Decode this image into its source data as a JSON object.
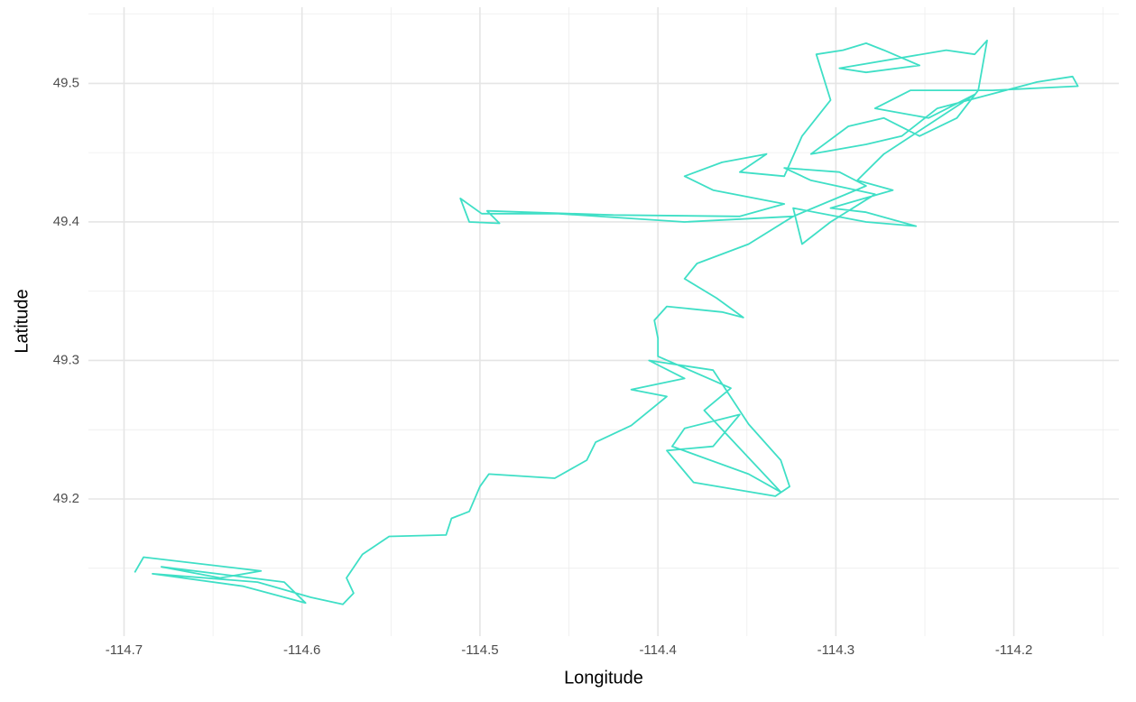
{
  "chart_data": {
    "type": "line",
    "x_label": "Longitude",
    "y_label": "Latitude",
    "color": "#3fdfc6",
    "xlim": [
      -114.72,
      -114.141
    ],
    "ylim": [
      49.101,
      49.555
    ],
    "xticks": [
      -114.7,
      -114.6,
      -114.5,
      -114.4,
      -114.3,
      -114.2
    ],
    "yticks": [
      49.2,
      49.3,
      49.4,
      49.5
    ],
    "grid": true,
    "x": [
      -114.694,
      -114.689,
      -114.623,
      -114.646,
      -114.679,
      -114.61,
      -114.598,
      -114.633,
      -114.684,
      -114.625,
      -114.595,
      -114.577,
      -114.571,
      -114.575,
      -114.566,
      -114.551,
      -114.519,
      -114.516,
      -114.506,
      -114.5,
      -114.495,
      -114.458,
      -114.44,
      -114.435,
      -114.415,
      -114.395,
      -114.415,
      -114.385,
      -114.405,
      -114.369,
      -114.349,
      -114.331,
      -114.326,
      -114.334,
      -114.38,
      -114.395,
      -114.369,
      -114.354,
      -114.385,
      -114.392,
      -114.349,
      -114.331,
      -114.374,
      -114.359,
      -114.4,
      -114.4,
      -114.402,
      -114.395,
      -114.364,
      -114.352,
      -114.367,
      -114.385,
      -114.378,
      -114.349,
      -114.324,
      -114.385,
      -114.456,
      -114.499,
      -114.511,
      -114.506,
      -114.489,
      -114.496,
      -114.425,
      -114.354,
      -114.329,
      -114.369,
      -114.385,
      -114.364,
      -114.339,
      -114.354,
      -114.329,
      -114.319,
      -114.303,
      -114.311,
      -114.296,
      -114.283,
      -114.273,
      -114.253,
      -114.283,
      -114.298,
      -114.238,
      -114.222,
      -114.215,
      -114.22,
      -114.232,
      -114.253,
      -114.273,
      -114.293,
      -114.314,
      -114.283,
      -114.263,
      -114.243,
      -114.187,
      -114.167,
      -114.164,
      -114.212,
      -114.258,
      -114.278,
      -114.248,
      -114.222,
      -114.273,
      -114.288,
      -114.268,
      -114.303,
      -114.283,
      -114.255,
      -114.283,
      -114.324,
      -114.319,
      -114.303,
      -114.278,
      -114.314,
      -114.329,
      -114.298,
      -114.283,
      -114.324
    ],
    "values": [
      49.147,
      49.158,
      49.148,
      49.143,
      49.151,
      49.14,
      49.125,
      49.137,
      49.146,
      49.14,
      49.129,
      49.124,
      49.132,
      49.143,
      49.16,
      49.173,
      49.174,
      49.186,
      49.191,
      49.209,
      49.218,
      49.215,
      49.228,
      49.241,
      49.253,
      49.274,
      49.279,
      49.287,
      49.3,
      49.293,
      49.254,
      49.228,
      49.209,
      49.202,
      49.212,
      49.235,
      49.238,
      49.261,
      49.251,
      49.238,
      49.218,
      49.205,
      49.264,
      49.28,
      49.303,
      49.316,
      49.329,
      49.339,
      49.335,
      49.331,
      49.345,
      49.359,
      49.37,
      49.384,
      49.404,
      49.4,
      49.406,
      49.406,
      49.417,
      49.4,
      49.399,
      49.408,
      49.405,
      49.404,
      49.413,
      49.423,
      49.433,
      49.443,
      49.449,
      49.436,
      49.433,
      49.462,
      49.488,
      49.521,
      49.524,
      49.529,
      49.524,
      49.513,
      49.508,
      49.511,
      49.524,
      49.521,
      49.531,
      49.495,
      49.475,
      49.462,
      49.475,
      49.469,
      49.449,
      49.456,
      49.462,
      49.482,
      49.501,
      49.505,
      49.498,
      49.495,
      49.495,
      49.482,
      49.475,
      49.492,
      49.449,
      49.43,
      49.423,
      49.41,
      49.407,
      49.397,
      49.4,
      49.41,
      49.384,
      49.4,
      49.42,
      49.43,
      49.439,
      49.436,
      49.426,
      49.404
    ]
  }
}
